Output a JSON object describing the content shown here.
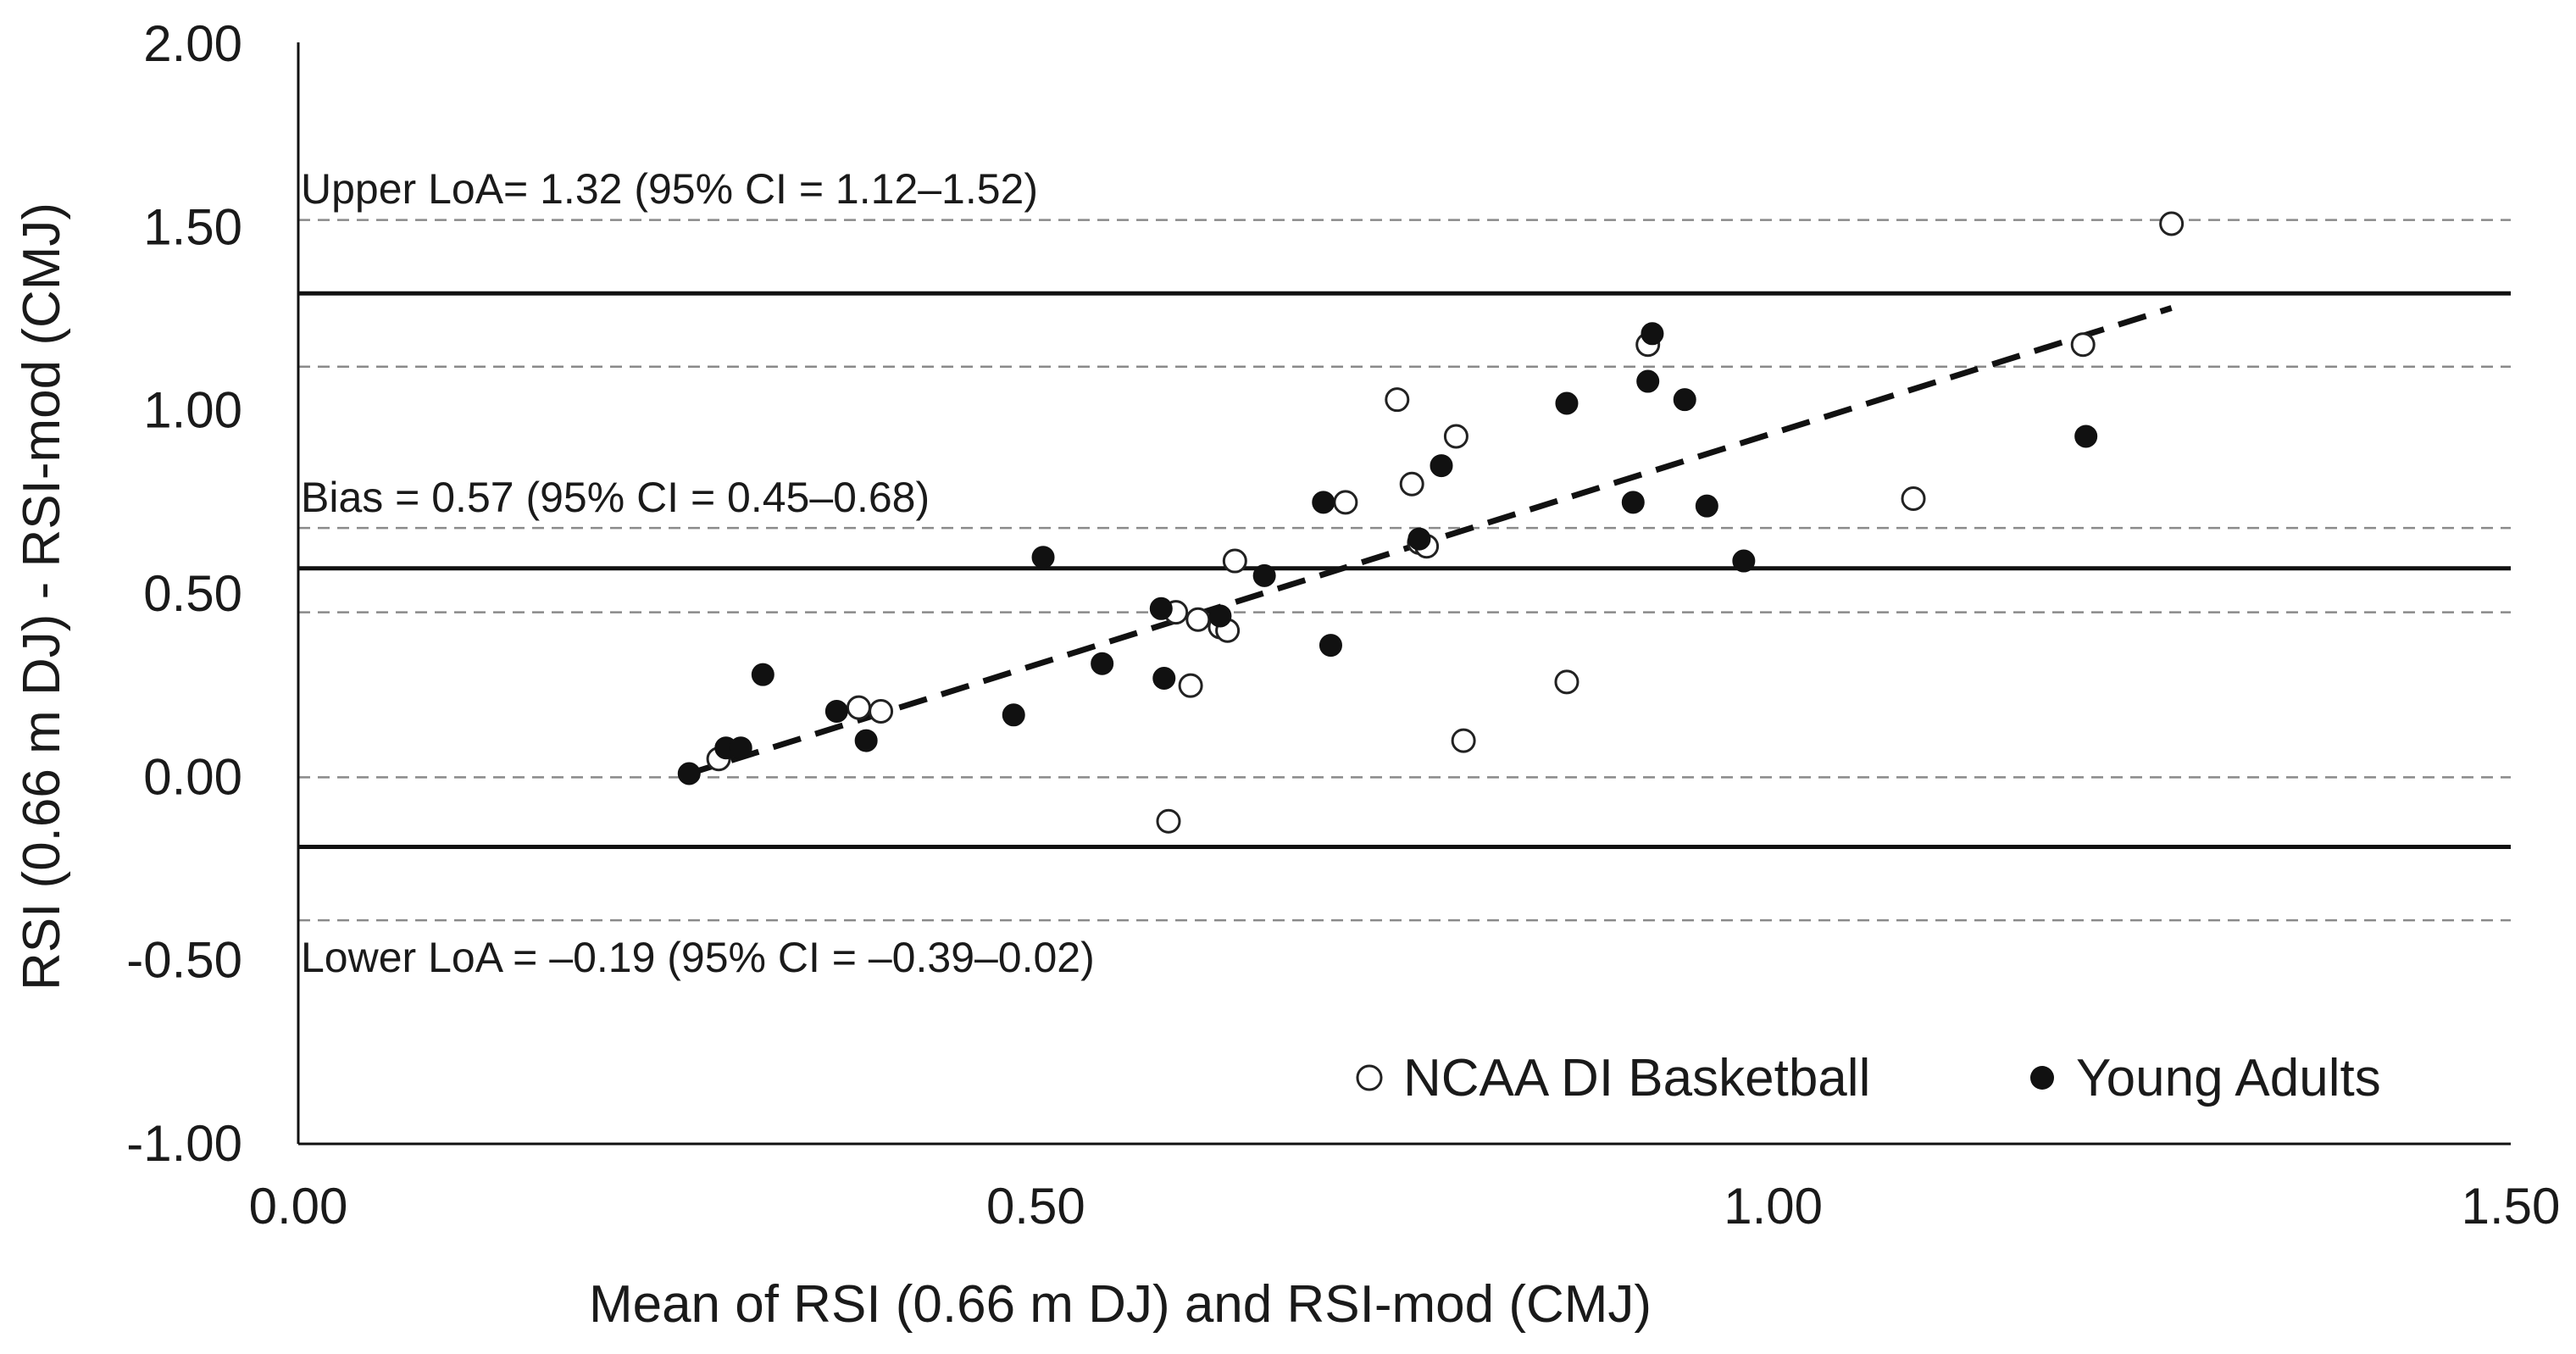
{
  "chart_data": {
    "type": "scatter",
    "title": "",
    "xlabel": "Mean of RSI (0.66 m DJ) and RSI-mod (CMJ)",
    "ylabel": "RSI (0.66 m DJ) - RSI-mod (CMJ)",
    "xlim": [
      0,
      1.5
    ],
    "ylim": [
      -1,
      2
    ],
    "x_ticks": [
      0,
      0.5,
      1,
      1.5
    ],
    "x_tick_labels": [
      "0.00",
      "0.50",
      "1.00",
      "1.50"
    ],
    "y_ticks": [
      -1,
      -0.5,
      0,
      0.5,
      1,
      1.5,
      2
    ],
    "y_tick_labels": [
      "-1.00",
      "-0.50",
      "0.00",
      "0.50",
      "1.00",
      "1.50",
      "2.00"
    ],
    "grid": false,
    "legend_position": "bottom-right",
    "series": [
      {
        "name": "NCAA DI Basketball",
        "marker": "open-circle",
        "points": [
          [
            0.285,
            0.05
          ],
          [
            0.38,
            0.19
          ],
          [
            0.395,
            0.18
          ],
          [
            0.59,
            -0.12
          ],
          [
            0.595,
            0.45
          ],
          [
            0.605,
            0.25
          ],
          [
            0.61,
            0.43
          ],
          [
            0.625,
            0.41
          ],
          [
            0.63,
            0.4
          ],
          [
            0.635,
            0.59
          ],
          [
            0.71,
            0.75
          ],
          [
            0.745,
            1.03
          ],
          [
            0.755,
            0.8
          ],
          [
            0.76,
            0.64
          ],
          [
            0.765,
            0.63
          ],
          [
            0.785,
            0.93
          ],
          [
            0.79,
            0.1
          ],
          [
            0.86,
            0.26
          ],
          [
            0.915,
            1.18
          ],
          [
            1.095,
            0.76
          ],
          [
            1.21,
            1.18
          ],
          [
            1.27,
            1.51
          ]
        ]
      },
      {
        "name": "Young Adults",
        "marker": "filled-circle",
        "points": [
          [
            0.265,
            0.01
          ],
          [
            0.29,
            0.08
          ],
          [
            0.3,
            0.08
          ],
          [
            0.315,
            0.28
          ],
          [
            0.365,
            0.18
          ],
          [
            0.385,
            0.1
          ],
          [
            0.485,
            0.17
          ],
          [
            0.505,
            0.6
          ],
          [
            0.545,
            0.31
          ],
          [
            0.585,
            0.46
          ],
          [
            0.587,
            0.27
          ],
          [
            0.625,
            0.44
          ],
          [
            0.655,
            0.55
          ],
          [
            0.695,
            0.75
          ],
          [
            0.7,
            0.36
          ],
          [
            0.76,
            0.65
          ],
          [
            0.775,
            0.85
          ],
          [
            0.86,
            1.02
          ],
          [
            0.905,
            0.75
          ],
          [
            0.915,
            1.08
          ],
          [
            0.918,
            1.21
          ],
          [
            0.94,
            1.03
          ],
          [
            0.955,
            0.74
          ],
          [
            0.98,
            0.59
          ],
          [
            1.212,
            0.93
          ]
        ]
      }
    ],
    "reference_lines": [
      {
        "name": "upper-loa",
        "y": 1.32,
        "style": "solid"
      },
      {
        "name": "upper-loa-ci-high",
        "y": 1.52,
        "style": "dashed"
      },
      {
        "name": "upper-loa-ci-low",
        "y": 1.12,
        "style": "dashed"
      },
      {
        "name": "bias",
        "y": 0.57,
        "style": "solid"
      },
      {
        "name": "bias-ci-high",
        "y": 0.68,
        "style": "dashed"
      },
      {
        "name": "bias-ci-low",
        "y": 0.45,
        "style": "dashed"
      },
      {
        "name": "zero",
        "y": 0,
        "style": "dashed"
      },
      {
        "name": "lower-loa",
        "y": -0.19,
        "style": "solid"
      },
      {
        "name": "lower-loa-ci-low",
        "y": -0.39,
        "style": "dashed"
      }
    ],
    "trend_line": {
      "style": "dashed",
      "x": [
        0.265,
        1.27
      ],
      "y": [
        0.01,
        1.28
      ]
    },
    "annotations": {
      "upper_loa": "Upper LoA= 1.32 (95% CI = 1.12–1.52)",
      "bias": "Bias = 0.57 (95% CI = 0.45–0.68)",
      "lower_loa": "Lower LoA = –0.19 (95% CI = –0.39–0.02)"
    }
  }
}
